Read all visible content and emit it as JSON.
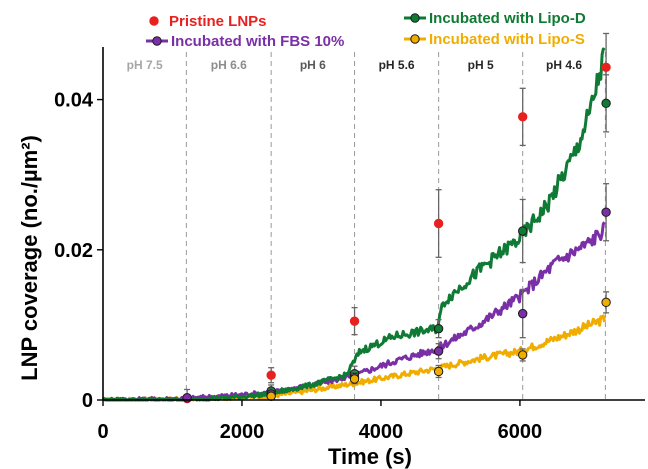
{
  "chart_data": {
    "type": "line",
    "xlabel": "Time (s)",
    "ylabel": "LNP coverage (no./µm²)",
    "xlim": [
      0,
      7800
    ],
    "ylim": [
      0,
      0.047
    ],
    "xticks": [
      0,
      2000,
      4000,
      6000
    ],
    "xtick_labels": [
      "0",
      "2000",
      "4000",
      "6000"
    ],
    "yticks": [
      0,
      0.02,
      0.04
    ],
    "ytick_labels": [
      "0",
      "0.02",
      "0.04"
    ],
    "grid": false,
    "legend_position": "top",
    "ph_boundaries": [
      1200,
      2420,
      3620,
      4830,
      6040,
      7230
    ],
    "ph_regions": [
      {
        "label": "pH 7.5",
        "center": 600,
        "color": "#a6a6a6"
      },
      {
        "label": "pH 6.6",
        "center": 1810,
        "color": "#8c8c8c"
      },
      {
        "label": "pH 6",
        "center": 3020,
        "color": "#595959"
      },
      {
        "label": "pH 5.6",
        "center": 4225,
        "color": "#262626"
      },
      {
        "label": "pH 5",
        "center": 5435,
        "color": "#262626"
      },
      {
        "label": "pH 4.6",
        "center": 6635,
        "color": "#262626"
      }
    ],
    "series": [
      {
        "name": "Pristine LNPs",
        "color": "#e8211f",
        "marker_fill": "#e8211f",
        "marker_stroke": "#e8211f",
        "line": false,
        "points": [
          {
            "x": 1210,
            "y": 0.0002,
            "err": 0.0012
          },
          {
            "x": 2420,
            "y": 0.0033,
            "err": 0.001
          },
          {
            "x": 3620,
            "y": 0.0105,
            "err": 0.0018
          },
          {
            "x": 4830,
            "y": 0.0235,
            "err": 0.0045
          },
          {
            "x": 6040,
            "y": 0.0377,
            "err": 0.0038
          },
          {
            "x": 7240,
            "y": 0.0443,
            "err": 0.0045
          }
        ]
      },
      {
        "name": "Incubated with Lipo-D",
        "color": "#0f7a34",
        "marker_fill": "#0f7a34",
        "marker_stroke": "#1a1a1a",
        "line": true,
        "curve": [
          [
            0,
            0
          ],
          [
            1200,
            0
          ],
          [
            1800,
            0.0003
          ],
          [
            2400,
            0.0008
          ],
          [
            3000,
            0.002
          ],
          [
            3500,
            0.0033
          ],
          [
            3700,
            0.0065
          ],
          [
            4200,
            0.0085
          ],
          [
            4800,
            0.0095
          ],
          [
            4900,
            0.013
          ],
          [
            5500,
            0.018
          ],
          [
            6000,
            0.0215
          ],
          [
            6400,
            0.026
          ],
          [
            6800,
            0.033
          ],
          [
            7000,
            0.038
          ],
          [
            7220,
            0.046
          ]
        ],
        "points": [
          {
            "x": 2420,
            "y": 0.0012,
            "err": 0.0008
          },
          {
            "x": 3620,
            "y": 0.0035,
            "err": 0.001
          },
          {
            "x": 4830,
            "y": 0.0095,
            "err": 0.0012
          },
          {
            "x": 6040,
            "y": 0.0225,
            "err": 0.0042
          },
          {
            "x": 7240,
            "y": 0.0395,
            "err": 0.0038
          }
        ]
      },
      {
        "name": "Incubated with FBS 10%",
        "color": "#7a2fa6",
        "marker_fill": "#7a2fa6",
        "marker_stroke": "#1a1a1a",
        "line": true,
        "curve": [
          [
            0,
            0
          ],
          [
            1200,
            0.0002
          ],
          [
            1800,
            0.0006
          ],
          [
            2400,
            0.001
          ],
          [
            3000,
            0.002
          ],
          [
            3600,
            0.0032
          ],
          [
            4200,
            0.0052
          ],
          [
            4800,
            0.0068
          ],
          [
            5400,
            0.01
          ],
          [
            6000,
            0.0138
          ],
          [
            6500,
            0.0182
          ],
          [
            7000,
            0.021
          ],
          [
            7220,
            0.0228
          ]
        ],
        "points": [
          {
            "x": 1210,
            "y": 0.0003,
            "err": 0.0004
          },
          {
            "x": 2420,
            "y": 0.0008,
            "err": 0.0006
          },
          {
            "x": 3620,
            "y": 0.003,
            "err": 0.0008
          },
          {
            "x": 4830,
            "y": 0.0065,
            "err": 0.001
          },
          {
            "x": 6040,
            "y": 0.0115,
            "err": 0.0032
          },
          {
            "x": 7240,
            "y": 0.025,
            "err": 0.0038
          }
        ]
      },
      {
        "name": "Incubated with Lipo-S",
        "color": "#f0ad00",
        "marker_fill": "#f0ad00",
        "marker_stroke": "#1a1a1a",
        "line": true,
        "curve": [
          [
            0,
            0
          ],
          [
            1200,
            0.0001
          ],
          [
            2400,
            0.0005
          ],
          [
            3000,
            0.0013
          ],
          [
            3600,
            0.0022
          ],
          [
            4200,
            0.0032
          ],
          [
            4800,
            0.0042
          ],
          [
            5400,
            0.0055
          ],
          [
            6000,
            0.0065
          ],
          [
            6600,
            0.0085
          ],
          [
            7220,
            0.0108
          ]
        ],
        "points": [
          {
            "x": 2420,
            "y": 0.0005,
            "err": 0.0004
          },
          {
            "x": 3620,
            "y": 0.0028,
            "err": 0.0006
          },
          {
            "x": 4830,
            "y": 0.0038,
            "err": 0.0008
          },
          {
            "x": 6040,
            "y": 0.006,
            "err": 0.0008
          },
          {
            "x": 7240,
            "y": 0.013,
            "err": 0.0014
          }
        ]
      }
    ]
  }
}
